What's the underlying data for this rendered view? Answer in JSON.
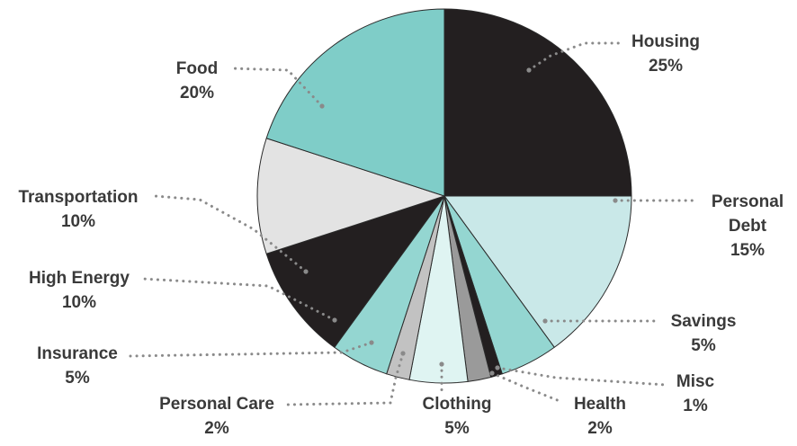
{
  "chart_data": {
    "type": "pie",
    "slices": [
      {
        "label": "Housing",
        "value": 25,
        "display": "25%",
        "color": "#231f20"
      },
      {
        "label": "Personal Debt",
        "value": 15,
        "display": "15%",
        "color": "#c9e8e8"
      },
      {
        "label": "Savings",
        "value": 5,
        "display": "5%",
        "color": "#94d6d1"
      },
      {
        "label": "Misc",
        "value": 1,
        "display": "1%",
        "color": "#231f20"
      },
      {
        "label": "Health",
        "value": 2,
        "display": "2%",
        "color": "#9a9a9a"
      },
      {
        "label": "Clothing",
        "value": 5,
        "display": "5%",
        "color": "#dff4f2"
      },
      {
        "label": "Personal Care",
        "value": 2,
        "display": "2%",
        "color": "#c2c2c2"
      },
      {
        "label": "Insurance",
        "value": 5,
        "display": "5%",
        "color": "#94d6d1"
      },
      {
        "label": "High Energy",
        "value": 10,
        "display": "10%",
        "color": "#231f20"
      },
      {
        "label": "Transportation",
        "value": 10,
        "display": "10%",
        "color": "#e3e3e3"
      },
      {
        "label": "Food",
        "value": 20,
        "display": "20%",
        "color": "#7fcdc8"
      }
    ],
    "leader_line_color": "#8a8a8a"
  }
}
